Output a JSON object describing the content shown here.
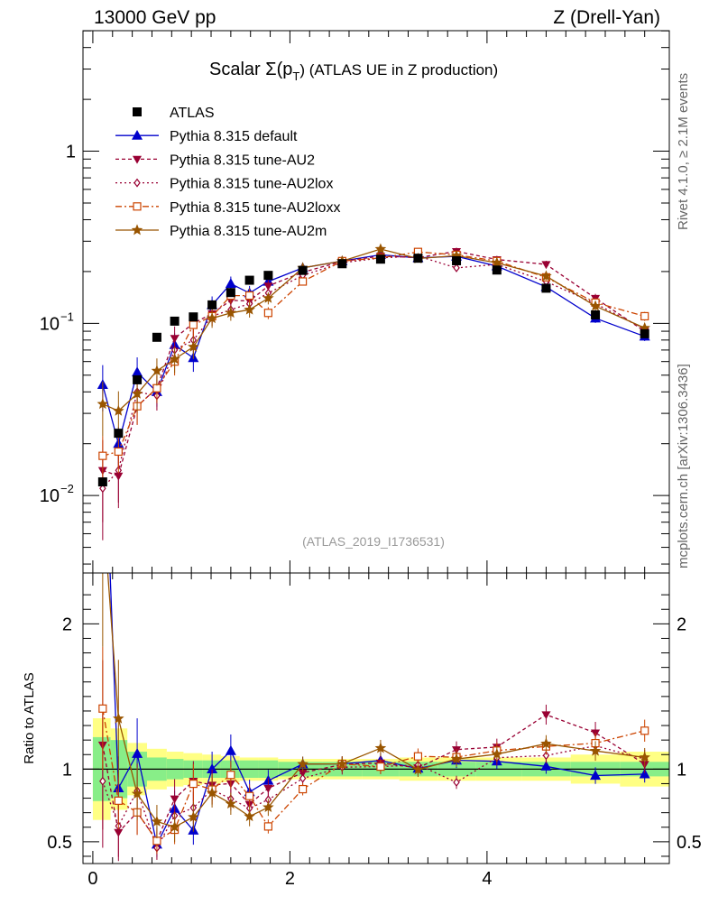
{
  "header": {
    "left": "13000 GeV pp",
    "right": "Z (Drell-Yan)"
  },
  "side_labels": {
    "rivet": "Rivet 4.1.0, ≥ 2.1M events",
    "mcplots": "mcplots.cern.ch [arXiv:1306.3436]"
  },
  "chart_data": {
    "type": "scatter",
    "title_prefix": "Scalar Σ(p",
    "title_sub": "T",
    "title_suffix": ") (ATLAS UE in Z production)",
    "analysis_label": "(ATLAS_2019_I1736531)",
    "xlabel": "",
    "ylabel_ratio": "Ratio to ATLAS",
    "xlim": [
      -0.1,
      5.85
    ],
    "ylim_main_log10": [
      -2.45,
      0.7
    ],
    "ylim_ratio": [
      0.35,
      2.35
    ],
    "x_ticks": [
      {
        "v": 0,
        "label": "0"
      },
      {
        "v": 2,
        "label": "2"
      },
      {
        "v": 4,
        "label": "4"
      }
    ],
    "main_y_ticks": [
      {
        "exp": -2,
        "base": "10",
        "sup": "−2"
      },
      {
        "exp": -1,
        "base": "10",
        "sup": "−1"
      },
      {
        "exp": 0,
        "base": "1",
        "sup": ""
      }
    ],
    "ratio_y_ticks": [
      {
        "v": 0.5,
        "label": "0.5"
      },
      {
        "v": 1,
        "label": "1"
      },
      {
        "v": 2,
        "label": "2"
      }
    ],
    "x": [
      0.1,
      0.26,
      0.45,
      0.65,
      0.83,
      1.02,
      1.21,
      1.4,
      1.59,
      1.78,
      2.13,
      2.53,
      2.92,
      3.3,
      3.69,
      4.1,
      4.6,
      5.1,
      5.6
    ],
    "bin_edges": [
      0.0,
      0.18,
      0.35,
      0.55,
      0.75,
      0.92,
      1.11,
      1.3,
      1.49,
      1.68,
      1.88,
      2.33,
      2.73,
      3.11,
      3.5,
      3.89,
      4.35,
      4.85,
      5.35,
      5.85
    ],
    "band_inner": [
      0.22,
      0.2,
      0.12,
      0.08,
      0.07,
      0.06,
      0.06,
      0.06,
      0.06,
      0.06,
      0.05,
      0.05,
      0.05,
      0.05,
      0.05,
      0.05,
      0.05,
      0.05,
      0.05
    ],
    "band_outer": [
      0.35,
      0.28,
      0.18,
      0.14,
      0.12,
      0.11,
      0.1,
      0.09,
      0.08,
      0.08,
      0.07,
      0.07,
      0.07,
      0.08,
      0.08,
      0.08,
      0.08,
      0.1,
      0.12
    ],
    "atlas": [
      0.012,
      0.023,
      0.047,
      0.083,
      0.103,
      0.109,
      0.128,
      0.151,
      0.178,
      0.19,
      0.203,
      0.222,
      0.236,
      0.239,
      0.231,
      0.204,
      0.16,
      0.112,
      0.087
    ],
    "series": [
      {
        "name": "Pythia 8.315 default",
        "color": "#0000cc",
        "dash": "",
        "marker": "triangle-up",
        "filled": true,
        "values": [
          0.044,
          0.02,
          0.052,
          0.04,
          0.075,
          0.063,
          0.128,
          0.17,
          0.15,
          0.175,
          0.21,
          0.23,
          0.25,
          0.24,
          0.245,
          0.215,
          0.163,
          0.107,
          0.084
        ],
        "rel_err": [
          0.3,
          0.25,
          0.22,
          0.18,
          0.17,
          0.17,
          0.12,
          0.1,
          0.1,
          0.08,
          0.05,
          0.05,
          0.05,
          0.05,
          0.05,
          0.05,
          0.05,
          0.06,
          0.06
        ]
      },
      {
        "name": "Pythia 8.315 tune-AU2",
        "color": "#990033",
        "dash": "4,3",
        "marker": "triangle-down",
        "filled": true,
        "values": [
          0.014,
          0.013,
          0.033,
          0.042,
          0.082,
          0.1,
          0.114,
          0.136,
          0.135,
          0.165,
          0.198,
          0.229,
          0.246,
          0.241,
          0.262,
          0.235,
          0.22,
          0.14,
          0.09
        ],
        "rel_err": [
          0.5,
          0.35,
          0.22,
          0.18,
          0.17,
          0.15,
          0.12,
          0.1,
          0.1,
          0.08,
          0.05,
          0.05,
          0.05,
          0.05,
          0.05,
          0.05,
          0.05,
          0.06,
          0.06
        ]
      },
      {
        "name": "Pythia 8.315 tune-AU2lox",
        "color": "#990033",
        "dash": "2,3",
        "marker": "diamond",
        "filled": false,
        "values": [
          0.011,
          0.014,
          0.04,
          0.038,
          0.07,
          0.08,
          0.11,
          0.12,
          0.13,
          0.15,
          0.19,
          0.225,
          0.24,
          0.246,
          0.21,
          0.22,
          0.175,
          0.13,
          0.093
        ],
        "rel_err": [
          0.5,
          0.35,
          0.22,
          0.18,
          0.17,
          0.15,
          0.12,
          0.1,
          0.1,
          0.08,
          0.05,
          0.05,
          0.05,
          0.05,
          0.05,
          0.05,
          0.05,
          0.06,
          0.06
        ]
      },
      {
        "name": "Pythia 8.315 tune-AU2loxx",
        "color": "#cc4400",
        "dash": "7,3,2,3",
        "marker": "square",
        "filled": false,
        "values": [
          0.017,
          0.018,
          0.033,
          0.042,
          0.06,
          0.098,
          0.11,
          0.145,
          0.145,
          0.115,
          0.175,
          0.23,
          0.24,
          0.26,
          0.25,
          0.23,
          0.185,
          0.132,
          0.11
        ],
        "rel_err": [
          0.3,
          0.25,
          0.22,
          0.18,
          0.17,
          0.15,
          0.12,
          0.1,
          0.1,
          0.08,
          0.05,
          0.05,
          0.05,
          0.05,
          0.05,
          0.05,
          0.05,
          0.06,
          0.06
        ]
      },
      {
        "name": "Pythia 8.315 tune-AU2m",
        "color": "#995500",
        "dash": "",
        "marker": "star",
        "filled": true,
        "values": [
          0.034,
          0.031,
          0.039,
          0.053,
          0.062,
          0.073,
          0.107,
          0.115,
          0.12,
          0.14,
          0.21,
          0.23,
          0.27,
          0.238,
          0.247,
          0.225,
          0.188,
          0.126,
          0.094
        ],
        "rel_err": [
          0.35,
          0.3,
          0.22,
          0.18,
          0.17,
          0.15,
          0.12,
          0.1,
          0.1,
          0.08,
          0.05,
          0.05,
          0.05,
          0.05,
          0.05,
          0.05,
          0.05,
          0.06,
          0.06
        ]
      }
    ],
    "legend": {
      "data_label": "ATLAS",
      "placement": "top-left"
    }
  }
}
